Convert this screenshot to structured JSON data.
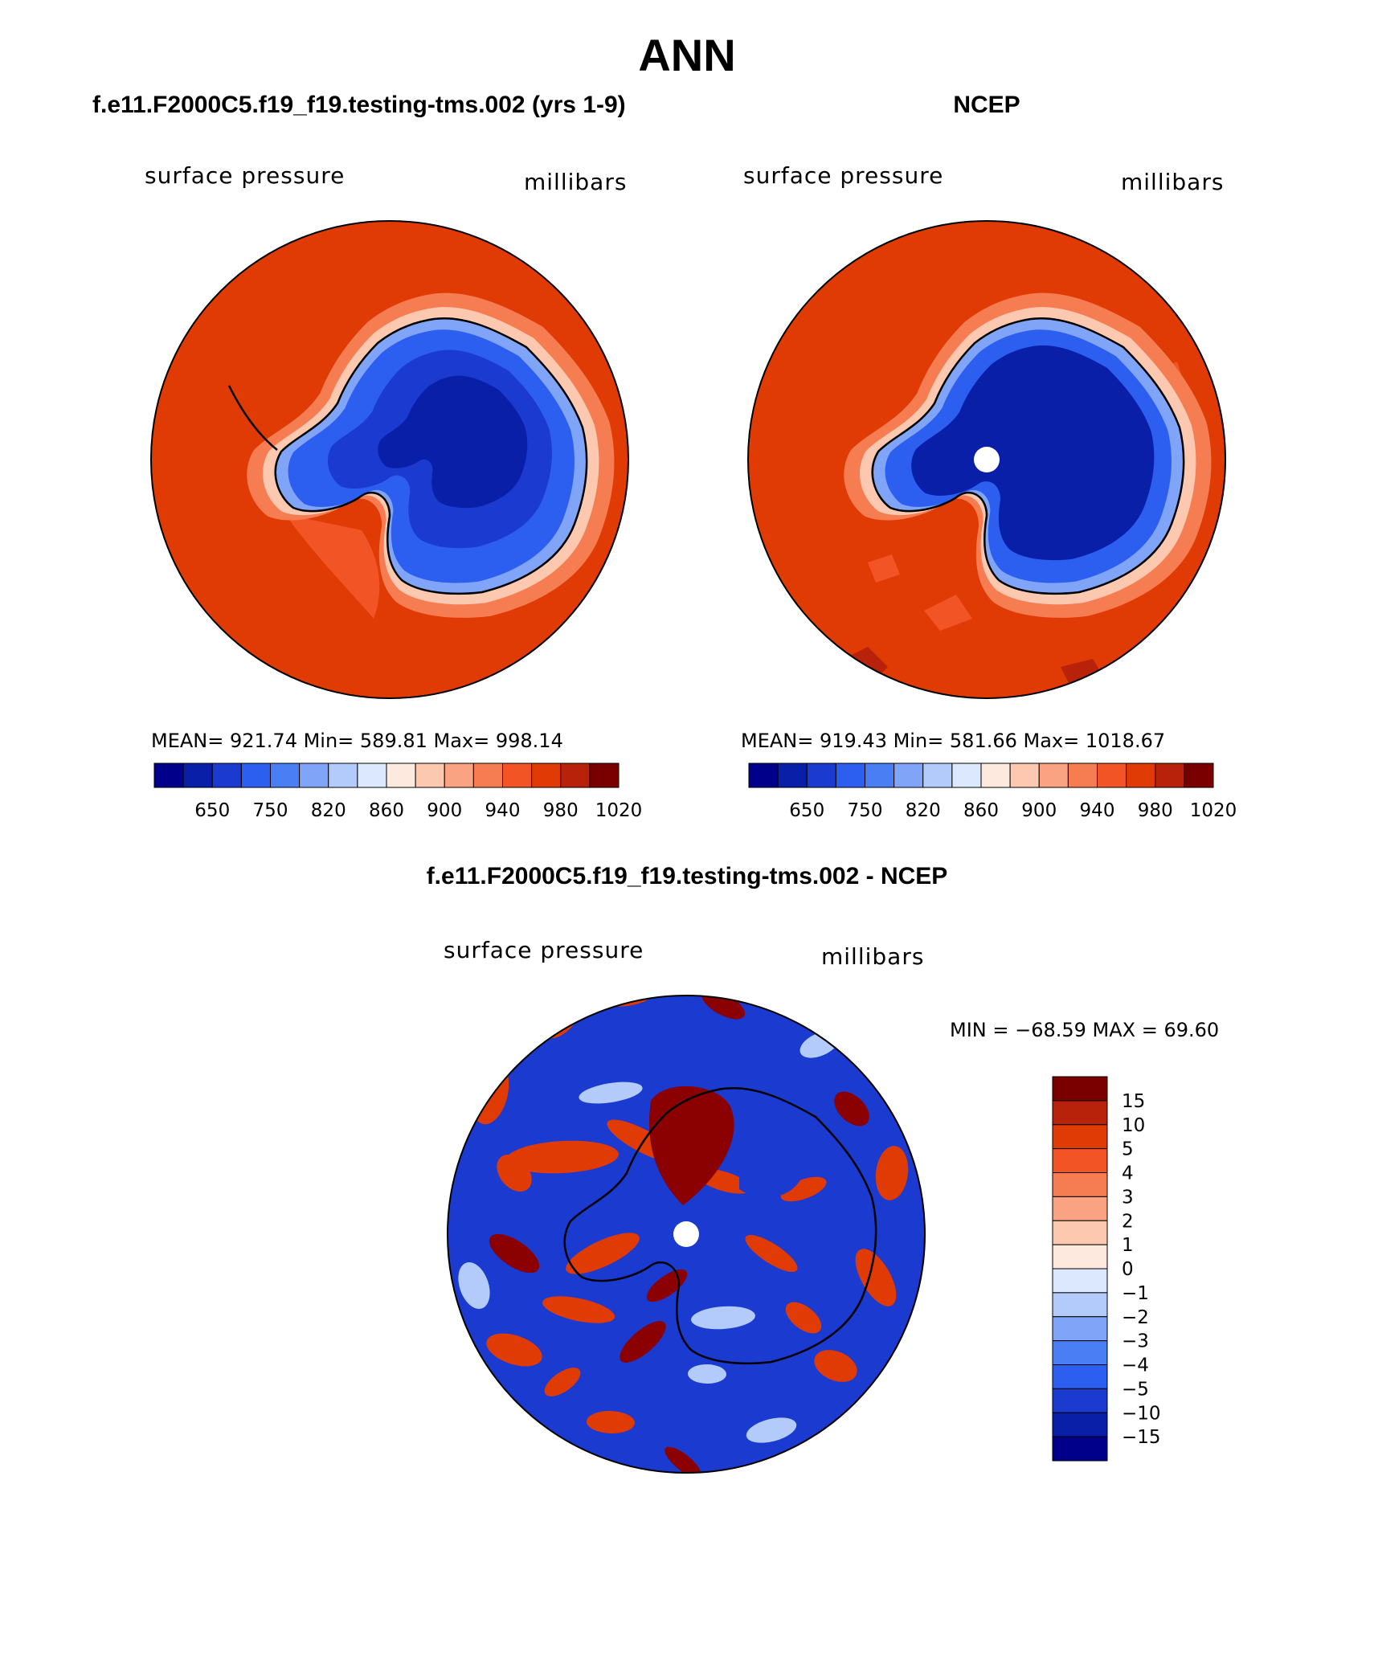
{
  "figure_title": "ANN",
  "panels": [
    {
      "title": "f.e11.F2000C5.f19_f19.testing-tms.002 (yrs 1-9)",
      "variable": "surface pressure",
      "units": "millibars",
      "stats": "MEAN= 921.74   Min= 589.81   Max= 998.14"
    },
    {
      "title": "NCEP",
      "variable": "surface pressure",
      "units": "millibars",
      "stats": "MEAN= 919.43   Min= 581.66   Max= 1018.67"
    },
    {
      "title": "f.e11.F2000C5.f19_f19.testing-tms.002 - NCEP",
      "variable": "surface pressure",
      "units": "millibars",
      "stats": "MIN = −68.59  MAX =   69.60"
    }
  ],
  "colorbar_abs": {
    "colors": [
      "#00008b",
      "#0a1fa8",
      "#1a3ad0",
      "#2c5ef0",
      "#4a7ef5",
      "#7fa4f8",
      "#b3cbfb",
      "#dbe8fd",
      "#fde9dd",
      "#fcc8b0",
      "#f9a382",
      "#f67c52",
      "#f25425",
      "#e03a05",
      "#b8220a",
      "#7a0000"
    ],
    "labels": [
      "650",
      "750",
      "820",
      "860",
      "900",
      "940",
      "980",
      "1020"
    ]
  },
  "colorbar_diff": {
    "colors": [
      "#7a0000",
      "#b8220a",
      "#e03a05",
      "#f25425",
      "#f67c52",
      "#f9a382",
      "#fcc8b0",
      "#fde9dd",
      "#dbe8fd",
      "#b3cbfb",
      "#7fa4f8",
      "#4a7ef5",
      "#2c5ef0",
      "#1a3ad0",
      "#0a1fa8",
      "#00008b"
    ],
    "labels": [
      "15",
      "10",
      "5",
      "4",
      "3",
      "2",
      "1",
      "0",
      "−1",
      "−2",
      "−3",
      "−4",
      "−5",
      "−10",
      "−15"
    ]
  },
  "map_colors": {
    "ocean_high": "#e03a05",
    "ocean_higher": "#b8220a",
    "coast_mid": "#f67c52",
    "coast_light": "#fcc8b0",
    "land_mid": "#2c5ef0",
    "land_deep": "#1a3ad0",
    "land_deepest": "#0a1fa8",
    "diff_red": "#e03a05",
    "diff_dark_red": "#8b0000",
    "diff_blue": "#1a3ad0",
    "diff_light": "#b3cbfb"
  }
}
